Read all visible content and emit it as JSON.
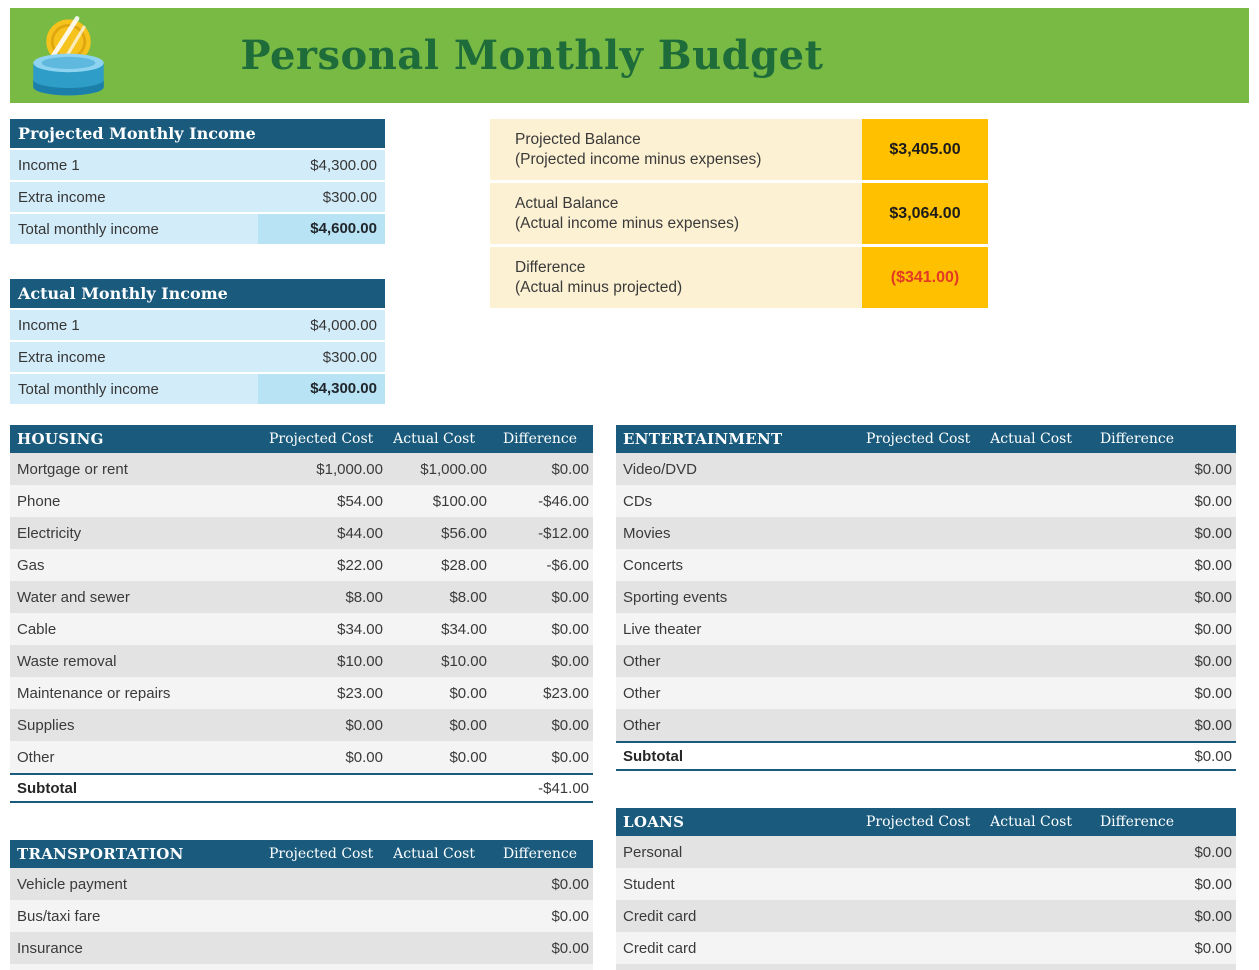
{
  "header": {
    "title": "Personal Monthly Budget",
    "icon": "coin-bank-icon"
  },
  "income_tables": [
    {
      "title": "Projected Monthly Income",
      "rows": [
        {
          "label": "Income 1",
          "value": "$4,300.00"
        },
        {
          "label": "Extra income",
          "value": "$300.00"
        }
      ],
      "total": {
        "label": "Total monthly income",
        "value": "$4,600.00"
      }
    },
    {
      "title": "Actual Monthly Income",
      "rows": [
        {
          "label": "Income 1",
          "value": "$4,000.00"
        },
        {
          "label": "Extra income",
          "value": "$300.00"
        }
      ],
      "total": {
        "label": "Total monthly income",
        "value": "$4,300.00"
      }
    }
  ],
  "balance_summary": {
    "rows": [
      {
        "label": "Projected Balance",
        "sublabel": "(Projected income minus expenses)",
        "value": "$3,405.00",
        "negative": false
      },
      {
        "label": "Actual Balance",
        "sublabel": "(Actual income minus expenses)",
        "value": "$3,064.00",
        "negative": false
      },
      {
        "label": "Difference",
        "sublabel": "(Actual minus projected)",
        "value": "($341.00)",
        "negative": true
      }
    ]
  },
  "expense_columns": [
    "Projected Cost",
    "Actual Cost",
    "Difference"
  ],
  "expense_tables": [
    {
      "id": "housing",
      "title": "HOUSING",
      "rows": [
        {
          "label": "Mortgage or rent",
          "projected": "$1,000.00",
          "actual": "$1,000.00",
          "difference": "$0.00"
        },
        {
          "label": "Phone",
          "projected": "$54.00",
          "actual": "$100.00",
          "difference": "-$46.00"
        },
        {
          "label": "Electricity",
          "projected": "$44.00",
          "actual": "$56.00",
          "difference": "-$12.00"
        },
        {
          "label": "Gas",
          "projected": "$22.00",
          "actual": "$28.00",
          "difference": "-$6.00"
        },
        {
          "label": "Water and sewer",
          "projected": "$8.00",
          "actual": "$8.00",
          "difference": "$0.00"
        },
        {
          "label": "Cable",
          "projected": "$34.00",
          "actual": "$34.00",
          "difference": "$0.00"
        },
        {
          "label": "Waste removal",
          "projected": "$10.00",
          "actual": "$10.00",
          "difference": "$0.00"
        },
        {
          "label": "Maintenance or repairs",
          "projected": "$23.00",
          "actual": "$0.00",
          "difference": "$23.00"
        },
        {
          "label": "Supplies",
          "projected": "$0.00",
          "actual": "$0.00",
          "difference": "$0.00"
        },
        {
          "label": "Other",
          "projected": "$0.00",
          "actual": "$0.00",
          "difference": "$0.00"
        }
      ],
      "subtotal": {
        "label": "Subtotal",
        "difference": "-$41.00"
      }
    },
    {
      "id": "entertainment",
      "title": "ENTERTAINMENT",
      "rows": [
        {
          "label": "Video/DVD",
          "projected": "",
          "actual": "",
          "difference": "$0.00"
        },
        {
          "label": "CDs",
          "projected": "",
          "actual": "",
          "difference": "$0.00"
        },
        {
          "label": "Movies",
          "projected": "",
          "actual": "",
          "difference": "$0.00"
        },
        {
          "label": "Concerts",
          "projected": "",
          "actual": "",
          "difference": "$0.00"
        },
        {
          "label": "Sporting events",
          "projected": "",
          "actual": "",
          "difference": "$0.00"
        },
        {
          "label": "Live theater",
          "projected": "",
          "actual": "",
          "difference": "$0.00"
        },
        {
          "label": "Other",
          "projected": "",
          "actual": "",
          "difference": "$0.00"
        },
        {
          "label": "Other",
          "projected": "",
          "actual": "",
          "difference": "$0.00"
        },
        {
          "label": "Other",
          "projected": "",
          "actual": "",
          "difference": "$0.00"
        }
      ],
      "subtotal": {
        "label": "Subtotal",
        "difference": "$0.00"
      }
    },
    {
      "id": "transportation",
      "title": "TRANSPORTATION",
      "rows": [
        {
          "label": "Vehicle payment",
          "projected": "",
          "actual": "",
          "difference": "$0.00"
        },
        {
          "label": "Bus/taxi fare",
          "projected": "",
          "actual": "",
          "difference": "$0.00"
        },
        {
          "label": "Insurance",
          "projected": "",
          "actual": "",
          "difference": "$0.00"
        }
      ]
    },
    {
      "id": "loans",
      "title": "LOANS",
      "rows": [
        {
          "label": "Personal",
          "projected": "",
          "actual": "",
          "difference": "$0.00"
        },
        {
          "label": "Student",
          "projected": "",
          "actual": "",
          "difference": "$0.00"
        },
        {
          "label": "Credit card",
          "projected": "",
          "actual": "",
          "difference": "$0.00"
        },
        {
          "label": "Credit card",
          "projected": "",
          "actual": "",
          "difference": "$0.00"
        }
      ]
    }
  ],
  "colors": {
    "banner_green": "#78BA43",
    "title_green": "#1F6C3B",
    "header_blue": "#1A5B7D",
    "light_blue": "#D3ECF9",
    "total_blue": "#B7E3F4",
    "cream": "#FCF1D3",
    "amber": "#FFC000",
    "negative_red": "#E33A26",
    "stripe_dark": "#E3E3E3",
    "stripe_light": "#F4F4F4"
  }
}
